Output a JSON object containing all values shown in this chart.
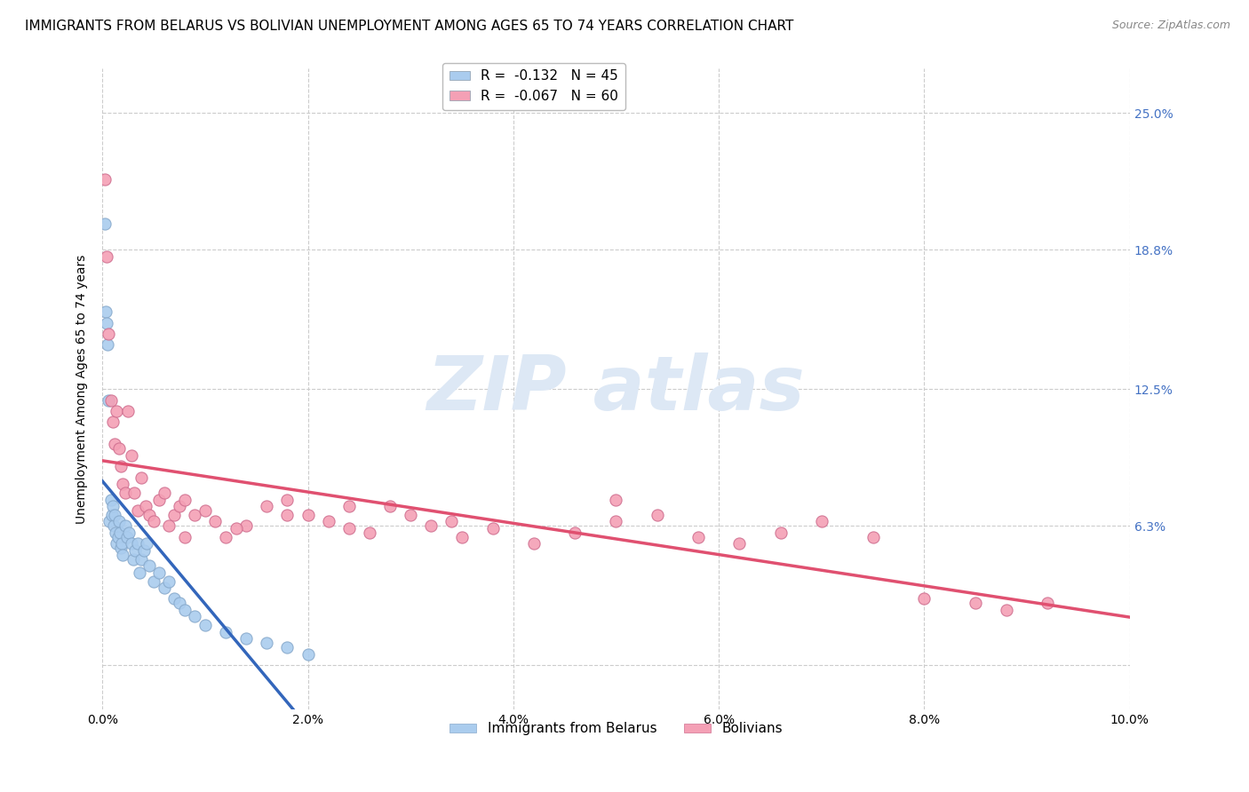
{
  "title": "IMMIGRANTS FROM BELARUS VS BOLIVIAN UNEMPLOYMENT AMONG AGES 65 TO 74 YEARS CORRELATION CHART",
  "source": "Source: ZipAtlas.com",
  "ylabel": "Unemployment Among Ages 65 to 74 years",
  "xmin": 0.0,
  "xmax": 0.1,
  "ymin": -0.02,
  "ymax": 0.27,
  "yticks": [
    0.0,
    0.063,
    0.125,
    0.188,
    0.25
  ],
  "ytick_labels": [
    "",
    "6.3%",
    "12.5%",
    "18.8%",
    "25.0%"
  ],
  "xticks": [
    0.0,
    0.02,
    0.04,
    0.06,
    0.08,
    0.1
  ],
  "xtick_labels": [
    "0.0%",
    "2.0%",
    "4.0%",
    "6.0%",
    "8.0%",
    "10.0%"
  ],
  "legend_top": [
    {
      "label": "R =  -0.132   N = 45",
      "color": "#aaccee"
    },
    {
      "label": "R =  -0.067   N = 60",
      "color": "#f4a0b5"
    }
  ],
  "legend_bottom": [
    {
      "label": "Immigrants from Belarus",
      "color": "#aaccee"
    },
    {
      "label": "Bolivians",
      "color": "#f4a0b5"
    }
  ],
  "belarus_x": [
    0.0002,
    0.0003,
    0.0004,
    0.0005,
    0.0006,
    0.0007,
    0.0008,
    0.0009,
    0.001,
    0.0011,
    0.0012,
    0.0013,
    0.0014,
    0.0015,
    0.0016,
    0.0017,
    0.0018,
    0.0019,
    0.002,
    0.0022,
    0.0024,
    0.0026,
    0.0028,
    0.003,
    0.0032,
    0.0034,
    0.0036,
    0.0038,
    0.004,
    0.0043,
    0.0046,
    0.005,
    0.0055,
    0.006,
    0.0065,
    0.007,
    0.0075,
    0.008,
    0.009,
    0.01,
    0.012,
    0.014,
    0.016,
    0.018,
    0.02
  ],
  "belarus_y": [
    0.2,
    0.16,
    0.155,
    0.145,
    0.12,
    0.065,
    0.075,
    0.068,
    0.072,
    0.063,
    0.068,
    0.06,
    0.055,
    0.058,
    0.065,
    0.06,
    0.053,
    0.055,
    0.05,
    0.063,
    0.058,
    0.06,
    0.055,
    0.048,
    0.052,
    0.055,
    0.042,
    0.048,
    0.052,
    0.055,
    0.045,
    0.038,
    0.042,
    0.035,
    0.038,
    0.03,
    0.028,
    0.025,
    0.022,
    0.018,
    0.015,
    0.012,
    0.01,
    0.008,
    0.005
  ],
  "bolivian_x": [
    0.0002,
    0.0004,
    0.0006,
    0.0008,
    0.001,
    0.0012,
    0.0014,
    0.0016,
    0.0018,
    0.002,
    0.0022,
    0.0025,
    0.0028,
    0.0031,
    0.0034,
    0.0038,
    0.0042,
    0.0046,
    0.005,
    0.0055,
    0.006,
    0.0065,
    0.007,
    0.0075,
    0.008,
    0.009,
    0.01,
    0.011,
    0.012,
    0.014,
    0.016,
    0.018,
    0.02,
    0.022,
    0.024,
    0.026,
    0.028,
    0.03,
    0.032,
    0.035,
    0.038,
    0.042,
    0.046,
    0.05,
    0.054,
    0.058,
    0.062,
    0.066,
    0.07,
    0.075,
    0.08,
    0.085,
    0.088,
    0.092,
    0.05,
    0.024,
    0.018,
    0.034,
    0.013,
    0.008
  ],
  "bolivian_y": [
    0.22,
    0.185,
    0.15,
    0.12,
    0.11,
    0.1,
    0.115,
    0.098,
    0.09,
    0.082,
    0.078,
    0.115,
    0.095,
    0.078,
    0.07,
    0.085,
    0.072,
    0.068,
    0.065,
    0.075,
    0.078,
    0.063,
    0.068,
    0.072,
    0.075,
    0.068,
    0.07,
    0.065,
    0.058,
    0.063,
    0.072,
    0.075,
    0.068,
    0.065,
    0.062,
    0.06,
    0.072,
    0.068,
    0.063,
    0.058,
    0.062,
    0.055,
    0.06,
    0.065,
    0.068,
    0.058,
    0.055,
    0.06,
    0.065,
    0.058,
    0.03,
    0.028,
    0.025,
    0.028,
    0.075,
    0.072,
    0.068,
    0.065,
    0.062,
    0.058
  ],
  "belarus_line_color": "#3366bb",
  "bolivian_line_color": "#e05070",
  "dashed_line_color": "#99bbdd",
  "background_color": "#ffffff",
  "grid_color": "#cccccc",
  "belarus_dot_color": "#aaccee",
  "bolivian_dot_color": "#f4a0b5",
  "watermark_color": "#dde8f5",
  "title_fontsize": 11,
  "axis_fontsize": 10,
  "tick_fontsize": 10,
  "legend_fontsize": 11
}
